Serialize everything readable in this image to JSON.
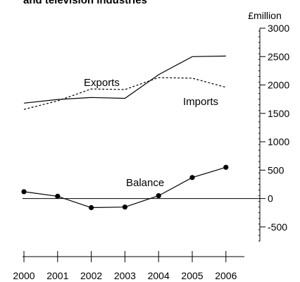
{
  "chart_data": {
    "type": "line",
    "title": "and television industries",
    "x": [
      "2000",
      "2001",
      "2002",
      "2003",
      "2004",
      "2005",
      "2006"
    ],
    "series": [
      {
        "name": "Exports",
        "style": "solid",
        "markers": false,
        "values": [
          1680,
          1745,
          1780,
          1765,
          2180,
          2500,
          2510
        ]
      },
      {
        "name": "Imports",
        "style": "dashed",
        "markers": false,
        "values": [
          1570,
          1720,
          1930,
          1920,
          2130,
          2120,
          1960
        ]
      },
      {
        "name": "Balance",
        "style": "solid",
        "markers": true,
        "values": [
          120,
          40,
          -160,
          -150,
          50,
          370,
          550
        ]
      }
    ],
    "ylabel": "£million",
    "yticks": [
      3000,
      2500,
      2000,
      1500,
      1000,
      500,
      0,
      -500
    ],
    "ylim": [
      -750,
      3000
    ],
    "y_axis_side": "right",
    "zero_line": true,
    "grid": false,
    "legend": "inline labels",
    "colors": {
      "line": "#000000",
      "background": "#ffffff"
    }
  }
}
